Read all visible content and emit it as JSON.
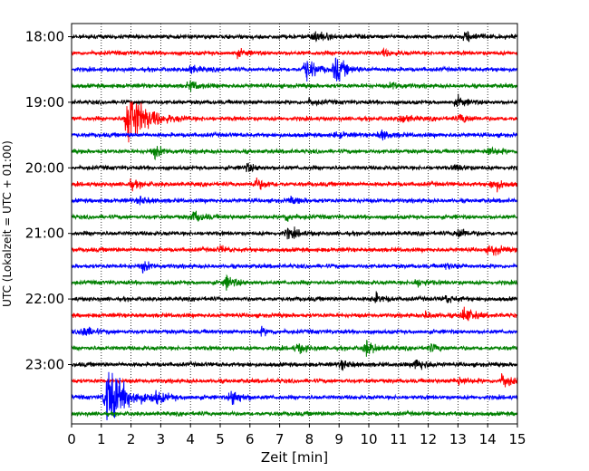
{
  "chart_data": {
    "type": "line",
    "title": "",
    "xlabel": "Zeit  [min]",
    "ylabel": "UTC (Lokalzeit = UTC + 01:00)",
    "xlim": [
      0,
      15
    ],
    "x_ticks": [
      "0",
      "1",
      "2",
      "3",
      "4",
      "5",
      "6",
      "7",
      "8",
      "9",
      "10",
      "11",
      "12",
      "13",
      "14",
      "15"
    ],
    "y_ticks": [
      "18:00",
      "19:00",
      "20:00",
      "21:00",
      "22:00",
      "23:00"
    ],
    "grid": "vertical dotted",
    "trace_interval_min": 15,
    "trace_colors": [
      "#000000",
      "#ff0000",
      "#0000ff",
      "#008000"
    ],
    "traces": [
      {
        "start": "18:00",
        "color": "#000000",
        "events": [
          [
            8.2,
            0.7
          ],
          [
            13.3,
            0.6
          ]
        ]
      },
      {
        "start": "18:15",
        "color": "#ff0000",
        "events": [
          [
            5.6,
            0.3
          ],
          [
            10.5,
            0.3
          ]
        ]
      },
      {
        "start": "18:30",
        "color": "#0000ff",
        "events": [
          [
            7.9,
            1.3
          ],
          [
            8.9,
            1.4
          ],
          [
            4.0,
            0.4
          ]
        ]
      },
      {
        "start": "18:45",
        "color": "#008000",
        "events": [
          [
            4.0,
            0.5
          ],
          [
            10.8,
            0.4
          ]
        ]
      },
      {
        "start": "19:00",
        "color": "#000000",
        "events": [
          [
            13.0,
            0.5
          ],
          [
            8.0,
            0.3
          ]
        ]
      },
      {
        "start": "19:15",
        "color": "#ff0000",
        "events": [
          [
            1.9,
            3.2
          ],
          [
            11.1,
            0.5
          ],
          [
            13.1,
            0.5
          ]
        ]
      },
      {
        "start": "19:30",
        "color": "#0000ff",
        "events": [
          [
            10.4,
            0.5
          ],
          [
            8.9,
            0.3
          ]
        ]
      },
      {
        "start": "19:45",
        "color": "#008000",
        "events": [
          [
            2.8,
            0.6
          ],
          [
            14.0,
            0.5
          ]
        ]
      },
      {
        "start": "20:00",
        "color": "#000000",
        "events": [
          [
            5.9,
            0.4
          ],
          [
            12.9,
            0.3
          ]
        ]
      },
      {
        "start": "20:15",
        "color": "#ff0000",
        "events": [
          [
            6.2,
            0.6
          ],
          [
            14.2,
            0.7
          ],
          [
            2.0,
            0.4
          ]
        ]
      },
      {
        "start": "20:30",
        "color": "#0000ff",
        "events": [
          [
            2.3,
            0.4
          ],
          [
            7.4,
            0.3
          ]
        ]
      },
      {
        "start": "20:45",
        "color": "#008000",
        "events": [
          [
            4.1,
            0.6
          ],
          [
            7.2,
            0.4
          ]
        ]
      },
      {
        "start": "21:00",
        "color": "#000000",
        "events": [
          [
            7.3,
            0.6
          ],
          [
            13.0,
            0.6
          ]
        ]
      },
      {
        "start": "21:15",
        "color": "#ff0000",
        "events": [
          [
            14.1,
            0.6
          ],
          [
            5.0,
            0.3
          ]
        ]
      },
      {
        "start": "21:30",
        "color": "#0000ff",
        "events": [
          [
            2.4,
            0.5
          ],
          [
            12.6,
            0.3
          ]
        ]
      },
      {
        "start": "21:45",
        "color": "#008000",
        "events": [
          [
            5.2,
            0.7
          ],
          [
            11.6,
            0.4
          ]
        ]
      },
      {
        "start": "22:00",
        "color": "#000000",
        "events": [
          [
            10.2,
            0.5
          ],
          [
            12.6,
            0.4
          ]
        ]
      },
      {
        "start": "22:15",
        "color": "#ff0000",
        "events": [
          [
            13.2,
            0.9
          ],
          [
            11.9,
            0.3
          ]
        ]
      },
      {
        "start": "22:30",
        "color": "#0000ff",
        "events": [
          [
            0.4,
            0.6
          ],
          [
            6.4,
            0.3
          ]
        ]
      },
      {
        "start": "22:45",
        "color": "#008000",
        "events": [
          [
            9.9,
            0.8
          ],
          [
            7.6,
            0.5
          ],
          [
            12.1,
            0.4
          ]
        ]
      },
      {
        "start": "23:00",
        "color": "#000000",
        "events": [
          [
            11.6,
            0.7
          ],
          [
            9.1,
            0.4
          ]
        ]
      },
      {
        "start": "23:15",
        "color": "#ff0000",
        "events": [
          [
            14.5,
            0.8
          ],
          [
            13.0,
            0.5
          ]
        ]
      },
      {
        "start": "23:30",
        "color": "#0000ff",
        "events": [
          [
            1.2,
            3.5
          ],
          [
            5.4,
            0.9
          ],
          [
            2.8,
            0.6
          ]
        ]
      },
      {
        "start": "23:45",
        "color": "#008000",
        "events": []
      }
    ]
  }
}
